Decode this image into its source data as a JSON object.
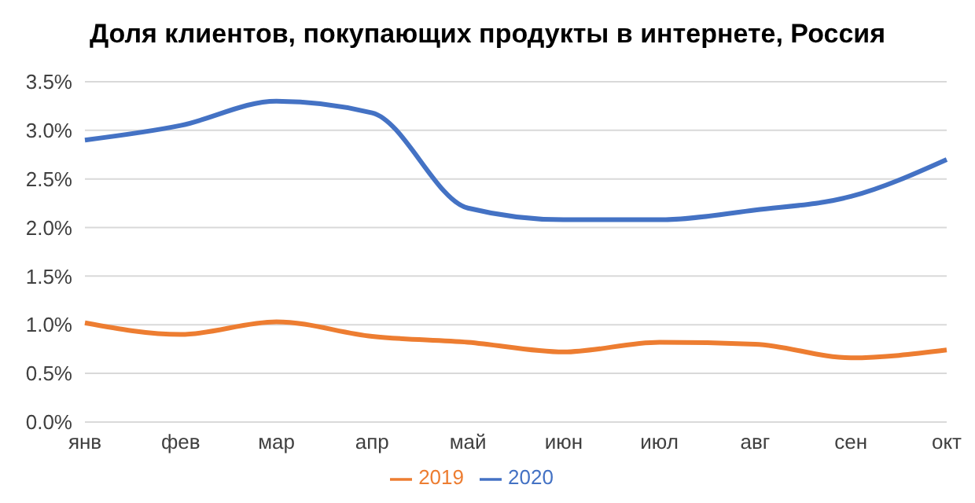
{
  "chart_data": {
    "type": "line",
    "title": "Доля клиентов, покупающих продукты в интернете, Россия",
    "categories": [
      "янв",
      "фев",
      "мар",
      "апр",
      "май",
      "июн",
      "июл",
      "авг",
      "сен",
      "окт"
    ],
    "series": [
      {
        "name": "2020",
        "color": "#4472c4",
        "values": [
          2.9,
          3.05,
          3.3,
          3.18,
          2.2,
          2.08,
          2.08,
          2.18,
          2.32,
          2.7
        ]
      },
      {
        "name": "2019",
        "color": "#ed7d31",
        "values": [
          1.02,
          0.9,
          1.03,
          0.88,
          0.82,
          0.72,
          0.82,
          0.8,
          0.66,
          0.74
        ]
      }
    ],
    "ylim": [
      0,
      3.5
    ],
    "yticks": [
      {
        "value": 0,
        "label": "0.0%"
      },
      {
        "value": 0.5,
        "label": "0.5%"
      },
      {
        "value": 1,
        "label": "1.0%"
      },
      {
        "value": 1.5,
        "label": "1.5%"
      },
      {
        "value": 2,
        "label": "2.0%"
      },
      {
        "value": 2.5,
        "label": "2.5%"
      },
      {
        "value": 3,
        "label": "3.0%"
      },
      {
        "value": 3.5,
        "label": "3.5%"
      }
    ],
    "grid": "y",
    "legend": "bottom",
    "marker": "none",
    "line_style": "solid"
  }
}
